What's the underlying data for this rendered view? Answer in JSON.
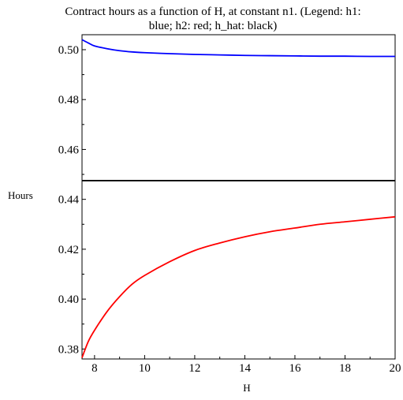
{
  "chart_data": {
    "type": "line",
    "title_lines": [
      "Contract hours as a function of H, at constant n1. (Legend: h1:",
      "blue; h2: red; h_hat: black)"
    ],
    "xlabel": "H",
    "ylabel": "Hours",
    "xlim": [
      7.5,
      20
    ],
    "ylim": [
      0.376,
      0.506
    ],
    "x_ticks": [
      8,
      10,
      12,
      14,
      16,
      18,
      20
    ],
    "x_tick_labels": [
      "8",
      "10",
      "12",
      "14",
      "16",
      "18",
      "20"
    ],
    "y_ticks": [
      0.38,
      0.4,
      0.42,
      0.44,
      0.46,
      0.48,
      0.5
    ],
    "y_tick_labels": [
      "0.38",
      "0.40",
      "0.42",
      "0.44",
      "0.46",
      "0.48",
      "0.50"
    ],
    "grid": false,
    "series": [
      {
        "color": "#0000ff",
        "x": [
          7.5,
          7.75,
          8,
          8.5,
          9,
          9.5,
          10,
          11,
          12,
          13,
          14,
          15,
          16,
          17,
          18,
          19,
          20
        ],
        "values": [
          0.504,
          0.5027,
          0.5015,
          0.5004,
          0.4996,
          0.4991,
          0.4988,
          0.4984,
          0.4981,
          0.4979,
          0.4977,
          0.4976,
          0.4975,
          0.4974,
          0.4974,
          0.4973,
          0.4973
        ]
      },
      {
        "color": "#ff0000",
        "x": [
          7.5,
          7.75,
          8,
          8.5,
          9,
          9.5,
          10,
          11,
          12,
          13,
          14,
          15,
          16,
          17,
          18,
          19,
          20
        ],
        "values": [
          0.3765,
          0.383,
          0.3875,
          0.395,
          0.401,
          0.406,
          0.4095,
          0.415,
          0.4195,
          0.4225,
          0.425,
          0.427,
          0.4285,
          0.43,
          0.431,
          0.432,
          0.433
        ]
      },
      {
        "color": "#000000",
        "x": [
          7.5,
          20
        ],
        "values": [
          0.4475,
          0.4475
        ]
      }
    ]
  }
}
